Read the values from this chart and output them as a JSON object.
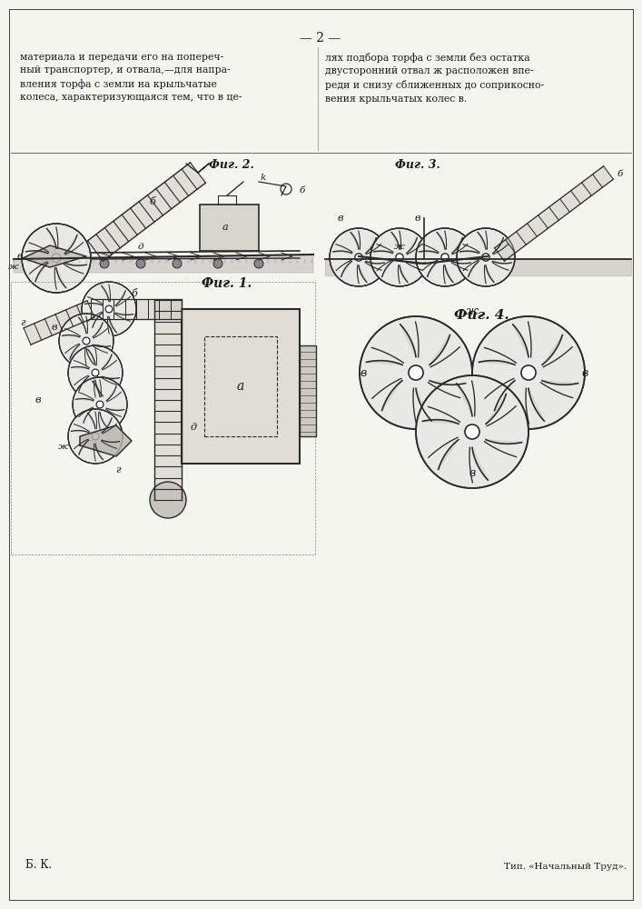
{
  "page_number": "— 2 —",
  "text_left": "материала и передачи его на попереч-\nный транспортер, и отвала,—для напра-\nвления торфа с земли на крыльчатые\nколеса, характеризующаяся тем, что в це-",
  "text_right": "лях подбора торфа с земли без остатка\nдвусторонний отвал ж расположен впе-\nреди и снизу сближенных до соприкосно-\nвения крыльчатых колес в.",
  "fig2_label": "Фиг. 2.",
  "fig3_label": "Фиг. 3.",
  "fig1_label": "Фиг. 1.",
  "fig4_label": "Фиг. 4.",
  "bottom_left": "Б. К.",
  "bottom_right": "Тип. «Начальный Труд».",
  "bg_color": "#f5f5f0",
  "line_color": "#2a2a2a",
  "text_color": "#1a1a1a"
}
